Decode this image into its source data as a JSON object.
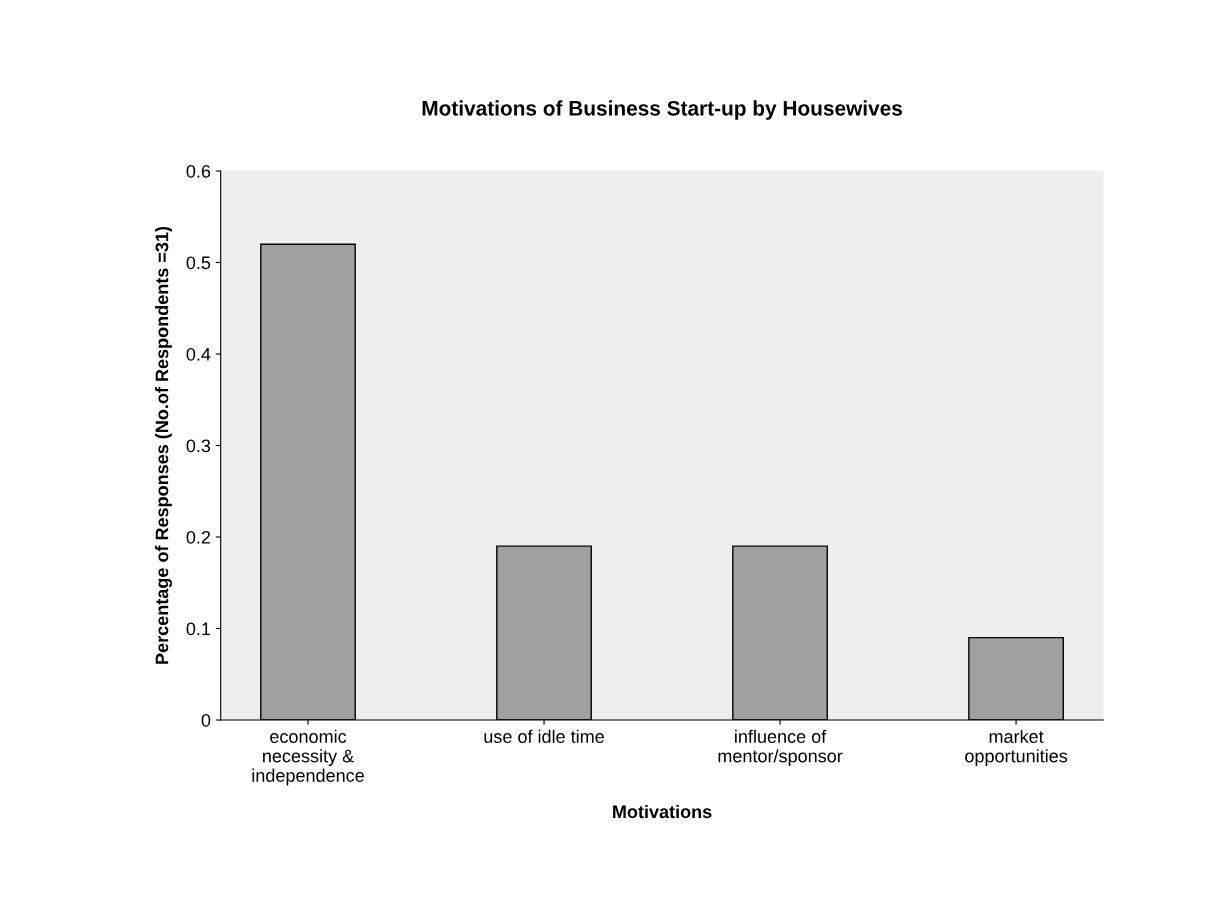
{
  "chart_data": {
    "type": "bar",
    "title": "Motivations of Business Start-up by Housewives",
    "xlabel": "Motivations",
    "ylabel": "Percentage of Responses (No.of Respondents =31)",
    "categories": [
      "economic\nnecessity &\nindependence",
      "use of idle time",
      "influence of\nmentor/sponsor",
      "market\nopportunities"
    ],
    "values": [
      0.52,
      0.19,
      0.19,
      0.09
    ],
    "color": "#a0a0a0",
    "ylim": [
      0,
      0.6
    ],
    "yticks": [
      0,
      0.1,
      0.2,
      0.3,
      0.4,
      0.5,
      0.6
    ],
    "grid": false
  }
}
